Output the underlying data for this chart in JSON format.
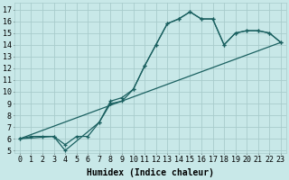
{
  "xlabel": "Humidex (Indice chaleur)",
  "ylabel": "",
  "xlim": [
    -0.5,
    23.5
  ],
  "ylim": [
    4.8,
    17.6
  ],
  "xticks": [
    0,
    1,
    2,
    3,
    4,
    5,
    6,
    7,
    8,
    9,
    10,
    11,
    12,
    13,
    14,
    15,
    16,
    17,
    18,
    19,
    20,
    21,
    22,
    23
  ],
  "yticks": [
    5,
    6,
    7,
    8,
    9,
    10,
    11,
    12,
    13,
    14,
    15,
    16,
    17
  ],
  "background_color": "#c8e8e8",
  "grid_color": "#a8cccc",
  "line_color": "#1a6060",
  "line1_x": [
    0,
    1,
    2,
    3,
    4,
    5,
    6,
    7,
    8,
    9,
    10,
    11,
    12,
    13,
    14,
    15,
    16,
    17,
    18,
    19,
    20,
    21,
    22,
    23
  ],
  "line1_y": [
    6.0,
    6.2,
    6.2,
    6.2,
    5.5,
    6.2,
    6.2,
    7.4,
    9.0,
    9.2,
    10.2,
    12.2,
    14.0,
    15.8,
    16.2,
    16.8,
    16.2,
    16.2,
    14.0,
    15.0,
    15.2,
    15.2,
    15.0,
    14.2
  ],
  "line2_x": [
    0,
    3,
    4,
    7,
    8,
    9,
    10,
    11,
    12,
    13,
    14,
    15,
    16,
    17,
    18,
    19,
    20,
    21,
    22,
    23
  ],
  "line2_y": [
    6.0,
    6.2,
    5.0,
    7.4,
    9.2,
    9.5,
    10.2,
    12.2,
    14.0,
    15.8,
    16.2,
    16.8,
    16.2,
    16.2,
    14.0,
    15.0,
    15.2,
    15.2,
    15.0,
    14.2
  ],
  "line3_x": [
    0,
    23
  ],
  "line3_y": [
    6.0,
    14.2
  ],
  "fontsize_label": 7,
  "fontsize_tick": 6,
  "marker": "+"
}
